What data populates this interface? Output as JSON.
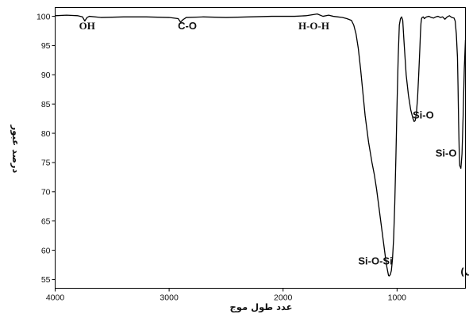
{
  "chart_data": {
    "type": "line",
    "xlabel": "عدد طول موج",
    "ylabel": "درصد عبور",
    "panel_label": "(الف)",
    "xlim": [
      4000,
      400
    ],
    "ylim": [
      53.5,
      101.5
    ],
    "x_ticks": [
      4000,
      3000,
      2000,
      1000
    ],
    "y_ticks": [
      55,
      60,
      65,
      70,
      75,
      80,
      85,
      90,
      95,
      100
    ],
    "grid": false,
    "series": [
      {
        "x": [
          4000,
          3900,
          3800,
          3760,
          3740,
          3720,
          3700,
          3600,
          3400,
          3200,
          3000,
          2920,
          2900,
          2880,
          2850,
          2700,
          2500,
          2300,
          2100,
          1900,
          1800,
          1700,
          1650,
          1600,
          1560,
          1520,
          1480,
          1440,
          1400,
          1380,
          1360,
          1340,
          1320,
          1300,
          1280,
          1250,
          1220,
          1200,
          1180,
          1160,
          1140,
          1120,
          1100,
          1090,
          1080,
          1075,
          1070,
          1060,
          1050,
          1040,
          1030,
          1020,
          1010,
          1000,
          990,
          980,
          970,
          960,
          950,
          940,
          920,
          900,
          880,
          860,
          850,
          840,
          830,
          820,
          810,
          800,
          795,
          790,
          785,
          780,
          770,
          760,
          750,
          740,
          720,
          700,
          680,
          660,
          640,
          620,
          600,
          580,
          560,
          540,
          520,
          500,
          490,
          480,
          470,
          465,
          460,
          455,
          450,
          440,
          430,
          420,
          410,
          400
        ],
        "y": [
          100.1,
          100.2,
          100.1,
          99.9,
          99.2,
          99.8,
          100.0,
          99.8,
          99.9,
          99.9,
          99.8,
          99.6,
          99.0,
          99.4,
          99.8,
          99.9,
          99.8,
          99.9,
          100.0,
          100.0,
          100.1,
          100.4,
          100.0,
          100.2,
          100.0,
          99.9,
          99.8,
          99.6,
          99.3,
          98.5,
          97.0,
          94.5,
          91.0,
          87.0,
          83.0,
          78.5,
          75.0,
          73.0,
          70.5,
          67.5,
          64.5,
          61.5,
          58.5,
          57.2,
          56.2,
          55.7,
          55.6,
          55.8,
          56.5,
          58.5,
          62.0,
          68.0,
          76.0,
          85.0,
          93.0,
          98.5,
          99.6,
          99.9,
          99.3,
          96.0,
          90.0,
          86.5,
          84.0,
          82.5,
          82.0,
          82.2,
          83.5,
          86.0,
          90.0,
          94.5,
          97.0,
          98.8,
          99.6,
          99.8,
          99.9,
          99.6,
          99.8,
          99.9,
          100.0,
          99.8,
          99.7,
          99.9,
          100.0,
          99.8,
          99.9,
          99.5,
          99.9,
          100.1,
          99.8,
          99.7,
          99.2,
          97.0,
          93.0,
          88.0,
          82.0,
          77.5,
          74.5,
          74.0,
          76.5,
          83.0,
          91.0,
          96.0
        ]
      }
    ],
    "annotations": [
      {
        "text": "OH",
        "x": 3720,
        "y": 97.8,
        "font": "serif"
      },
      {
        "text": "C-O",
        "x": 2840,
        "y": 97.8,
        "font": "sans"
      },
      {
        "text": "H-O-H",
        "x": 1730,
        "y": 97.8,
        "font": "serif"
      },
      {
        "text": "Si-O",
        "x": 770,
        "y": 82.5,
        "font": "sans"
      },
      {
        "text": "Si-O",
        "x": 570,
        "y": 76.0,
        "font": "sans"
      },
      {
        "text": "Si-O-Si",
        "x": 1190,
        "y": 57.6,
        "font": "sans"
      }
    ]
  }
}
